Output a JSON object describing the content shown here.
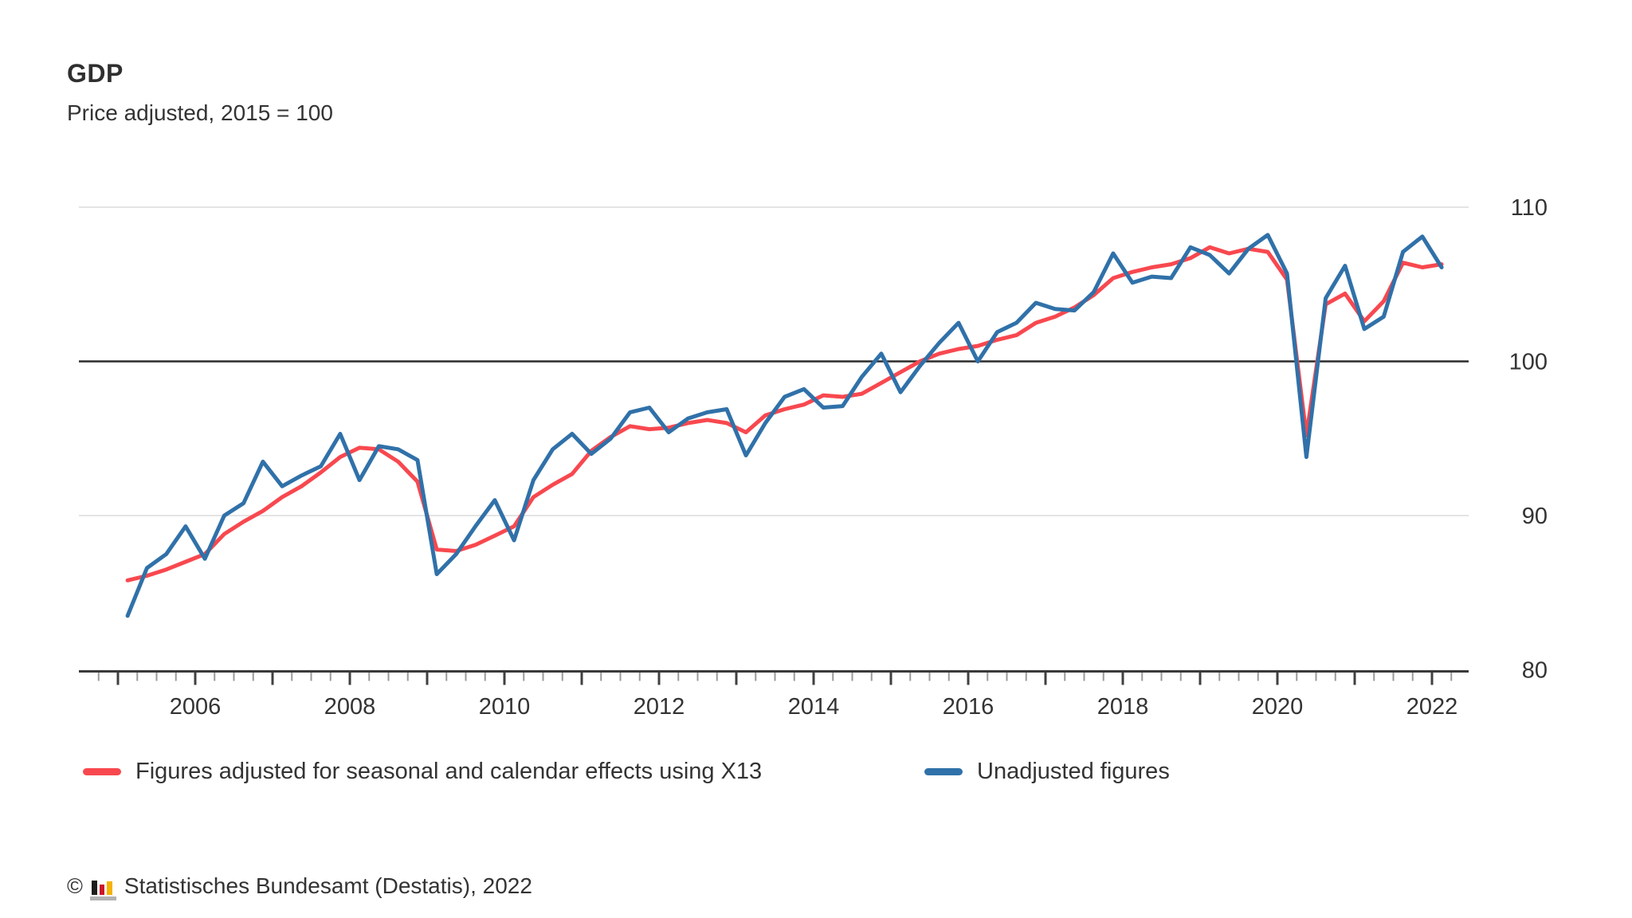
{
  "page": {
    "background": "#ffffff",
    "text_color": "#333333"
  },
  "header": {
    "title": "GDP",
    "subtitle": "Price adjusted, 2015 = 100"
  },
  "chart_data": {
    "type": "line",
    "title": "GDP",
    "subtitle": "Price adjusted, 2015 = 100",
    "x_unit": "quarterly, 2005 Q1 – 2022 Q1",
    "x_start_year": 2005,
    "x_tick_labels": [
      "2006",
      "2008",
      "2010",
      "2012",
      "2014",
      "2016",
      "2018",
      "2020",
      "2022"
    ],
    "y_ticks": [
      110,
      100,
      90,
      80
    ],
    "y_tick_labels": [
      "110",
      "100",
      "90",
      "80"
    ],
    "ylim": [
      80,
      111.5
    ],
    "baseline_value": 100,
    "grid": "horizontal",
    "legend_position": "bottom",
    "colors": {
      "adjusted": "#f8484f",
      "unadjusted": "#3071a9",
      "gridline": "#dcdcdc",
      "baseline": "#2b2b2b",
      "axis": "#3a3a3a",
      "minor_tick": "#9a9a9a",
      "year_tick": "#404040"
    },
    "series": [
      {
        "name": "Figures adjusted for seasonal and calendar effects using X13",
        "color": "#f8484f",
        "values": [
          85.8,
          86.1,
          86.5,
          87.0,
          87.5,
          88.8,
          89.6,
          90.3,
          91.2,
          91.9,
          92.8,
          93.8,
          94.4,
          94.3,
          93.5,
          92.2,
          87.8,
          87.7,
          88.1,
          88.7,
          89.3,
          91.2,
          92.0,
          92.7,
          94.2,
          95.1,
          95.8,
          95.6,
          95.7,
          96.0,
          96.2,
          96.0,
          95.4,
          96.5,
          96.9,
          97.2,
          97.8,
          97.7,
          97.9,
          98.6,
          99.3,
          100.0,
          100.5,
          100.8,
          101.0,
          101.4,
          101.7,
          102.5,
          102.9,
          103.5,
          104.3,
          105.4,
          105.8,
          106.1,
          106.3,
          106.7,
          107.4,
          107.0,
          107.3,
          107.1,
          105.3,
          95.2,
          103.7,
          104.4,
          102.6,
          103.9,
          106.4,
          106.1,
          106.3
        ]
      },
      {
        "name": "Unadjusted figures",
        "color": "#3071a9",
        "values": [
          83.5,
          86.6,
          87.5,
          89.3,
          87.2,
          90.0,
          90.8,
          93.5,
          91.9,
          92.6,
          93.2,
          95.3,
          92.3,
          94.5,
          94.3,
          93.6,
          86.2,
          87.5,
          89.3,
          91.0,
          88.4,
          92.3,
          94.3,
          95.3,
          94.0,
          95.0,
          96.7,
          97.0,
          95.4,
          96.3,
          96.7,
          96.9,
          93.9,
          96.0,
          97.7,
          98.2,
          97.0,
          97.1,
          99.0,
          100.5,
          98.0,
          99.7,
          101.2,
          102.5,
          100.0,
          101.9,
          102.5,
          103.8,
          103.4,
          103.3,
          104.5,
          107.0,
          105.1,
          105.5,
          105.4,
          107.4,
          106.9,
          105.7,
          107.3,
          108.2,
          105.7,
          93.8,
          104.1,
          106.2,
          102.1,
          102.9,
          107.1,
          108.1,
          106.1
        ]
      }
    ]
  },
  "legend": {
    "items": [
      {
        "label": "Figures adjusted for seasonal and calendar effects using X13",
        "color": "#f8484f"
      },
      {
        "label": "Unadjusted figures",
        "color": "#3071a9"
      }
    ]
  },
  "footer": {
    "copyright_sign": "©",
    "source": "Statistisches Bundesamt (Destatis), 2022",
    "logo": {
      "name": "destatis-bar-chart-logo",
      "bar_colors": [
        "#1d1d1b",
        "#cc1626",
        "#f5b200"
      ],
      "base_color": "#b2b2b2"
    }
  }
}
